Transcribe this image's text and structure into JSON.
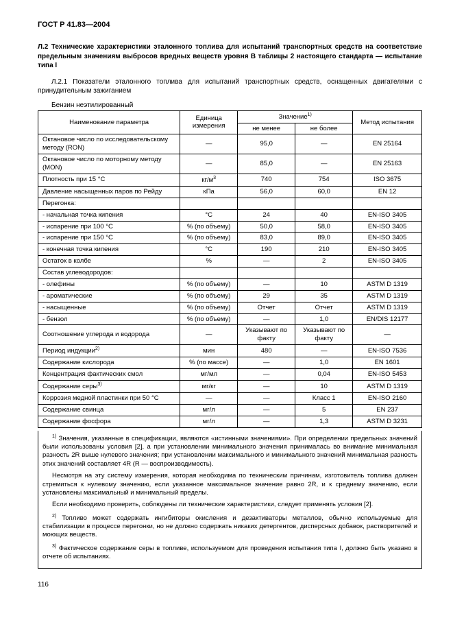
{
  "header": "ГОСТ Р 41.83—2004",
  "section_title": "Л.2 Технические характеристики эталонного топлива для испытаний транспортных средств на соответствие предельным значениям выбросов вредных веществ уровня В таблицы 2 настоящего стандарта — испытание типа I",
  "intro": "Л.2.1 Показатели эталонного топлива для испытаний транспортных средств, оснащенных двигателями с принудительным зажиганием",
  "fuel_label": "Бензин неэтилированный",
  "table": {
    "head": {
      "c1": "Наименование параметра",
      "c2": "Единица измерения",
      "c3": "Значение1)",
      "c3a": "не менее",
      "c3b": "не более",
      "c4": "Метод испытания"
    },
    "rows": [
      {
        "p": "Октановое число по исследовательскому методу (RON)",
        "u": "—",
        "a": "95,0",
        "b": "—",
        "m": "EN 25164"
      },
      {
        "p": "Октановое число по моторному методу (MON)",
        "u": "—",
        "a": "85,0",
        "b": "—",
        "m": "EN 25163"
      },
      {
        "p": "Плотность при 15 °C",
        "u": "кг/м3",
        "a": "740",
        "b": "754",
        "m": "ISO 3675"
      },
      {
        "p": "Давление насыщенных паров по Рейду",
        "u": "кПа",
        "a": "56,0",
        "b": "60,0",
        "m": "EN 12"
      },
      {
        "p": "Перегонка:",
        "u": "",
        "a": "",
        "b": "",
        "m": ""
      },
      {
        "p": "- начальная точка кипения",
        "u": "°C",
        "a": "24",
        "b": "40",
        "m": "EN-ISO 3405"
      },
      {
        "p": "- испарение при 100 °C",
        "u": "% (по объему)",
        "a": "50,0",
        "b": "58,0",
        "m": "EN-ISO 3405"
      },
      {
        "p": "- испарение при 150 °C",
        "u": "% (по объему)",
        "a": "83,0",
        "b": "89,0",
        "m": "EN-ISO 3405"
      },
      {
        "p": "- конечная точка кипения",
        "u": "°C",
        "a": "190",
        "b": "210",
        "m": "EN-ISO 3405"
      },
      {
        "p": "Остаток в колбе",
        "u": "%",
        "a": "—",
        "b": "2",
        "m": "EN-ISO 3405"
      },
      {
        "p": "Состав углеводородов:",
        "u": "",
        "a": "",
        "b": "",
        "m": ""
      },
      {
        "p": "- олефины",
        "u": "% (по объему)",
        "a": "—",
        "b": "10",
        "m": "ASTM D 1319"
      },
      {
        "p": "- ароматические",
        "u": "% (по объему)",
        "a": "29",
        "b": "35",
        "m": "ASTM D 1319"
      },
      {
        "p": "- насыщенные",
        "u": "% (по объему)",
        "a": "Отчет",
        "b": "Отчет",
        "m": "ASTM D 1319"
      },
      {
        "p": "- бензол",
        "u": "% (по объему)",
        "a": "—",
        "b": "1,0",
        "m": "EN/DIS 12177"
      },
      {
        "p": "Соотношение углерода и водорода",
        "u": "—",
        "a": "Указывают по факту",
        "b": "Указывают по факту",
        "m": "—"
      },
      {
        "p": "Период индукции2)",
        "u": "мин",
        "a": "480",
        "b": "—",
        "m": "EN-ISO 7536"
      },
      {
        "p": "Содержание кислорода",
        "u": "% (по массе)",
        "a": "—",
        "b": "1,0",
        "m": "EN 1601"
      },
      {
        "p": "Концентрация фактических смол",
        "u": "мг/мл",
        "a": "—",
        "b": "0,04",
        "m": "EN-ISO 5453"
      },
      {
        "p": "Содержание серы3)",
        "u": "мг/кг",
        "a": "—",
        "b": "10",
        "m": "ASTM D 1319"
      },
      {
        "p": "Коррозия медной пластинки при 50 °C",
        "u": "—",
        "a": "—",
        "b": "Класс 1",
        "m": "EN-ISO 2160"
      },
      {
        "p": "Содержание свинца",
        "u": "мг/л",
        "a": "—",
        "b": "5",
        "m": "EN 237"
      },
      {
        "p": "Содержание фосфора",
        "u": "мг/л",
        "a": "—",
        "b": "1,3",
        "m": "ASTM D 3231"
      }
    ]
  },
  "footnotes": {
    "f1": "1) Значения, указанные в спецификации, являются «истинными значениями». При определении предельных значений были использованы условия [2], а при установлении минимального значения принималась во внимание минимальная разность 2R выше нулевого значения; при установлении максимального и минимального значений минимальная разность этих значений составляет 4R (R — воспроизводимость).",
    "f1b": "Несмотря на эту систему измерения, которая необходима по техническим причинам, изготовитель топлива должен стремиться к нулевому значению, если указанное максимальное значение равно 2R, и к среднему значению, если установлены максимальный и минимальный пределы.",
    "f1c": "Если необходимо проверить, соблюдены ли технические характеристики, следует применять условия [2].",
    "f2": "2) Топливо может содержать ингибиторы окисления и дезактиваторы металлов, обычно используемые для стабилизации в процессе перегонки, но не должно содержать никаких детергентов, дисперсных добавок, растворителей и моющих веществ.",
    "f3": "3) Фактическое содержание серы в топливе, используемом для проведения испытания типа I, должно быть указано в отчете об испытаниях."
  },
  "pagenum": "116"
}
